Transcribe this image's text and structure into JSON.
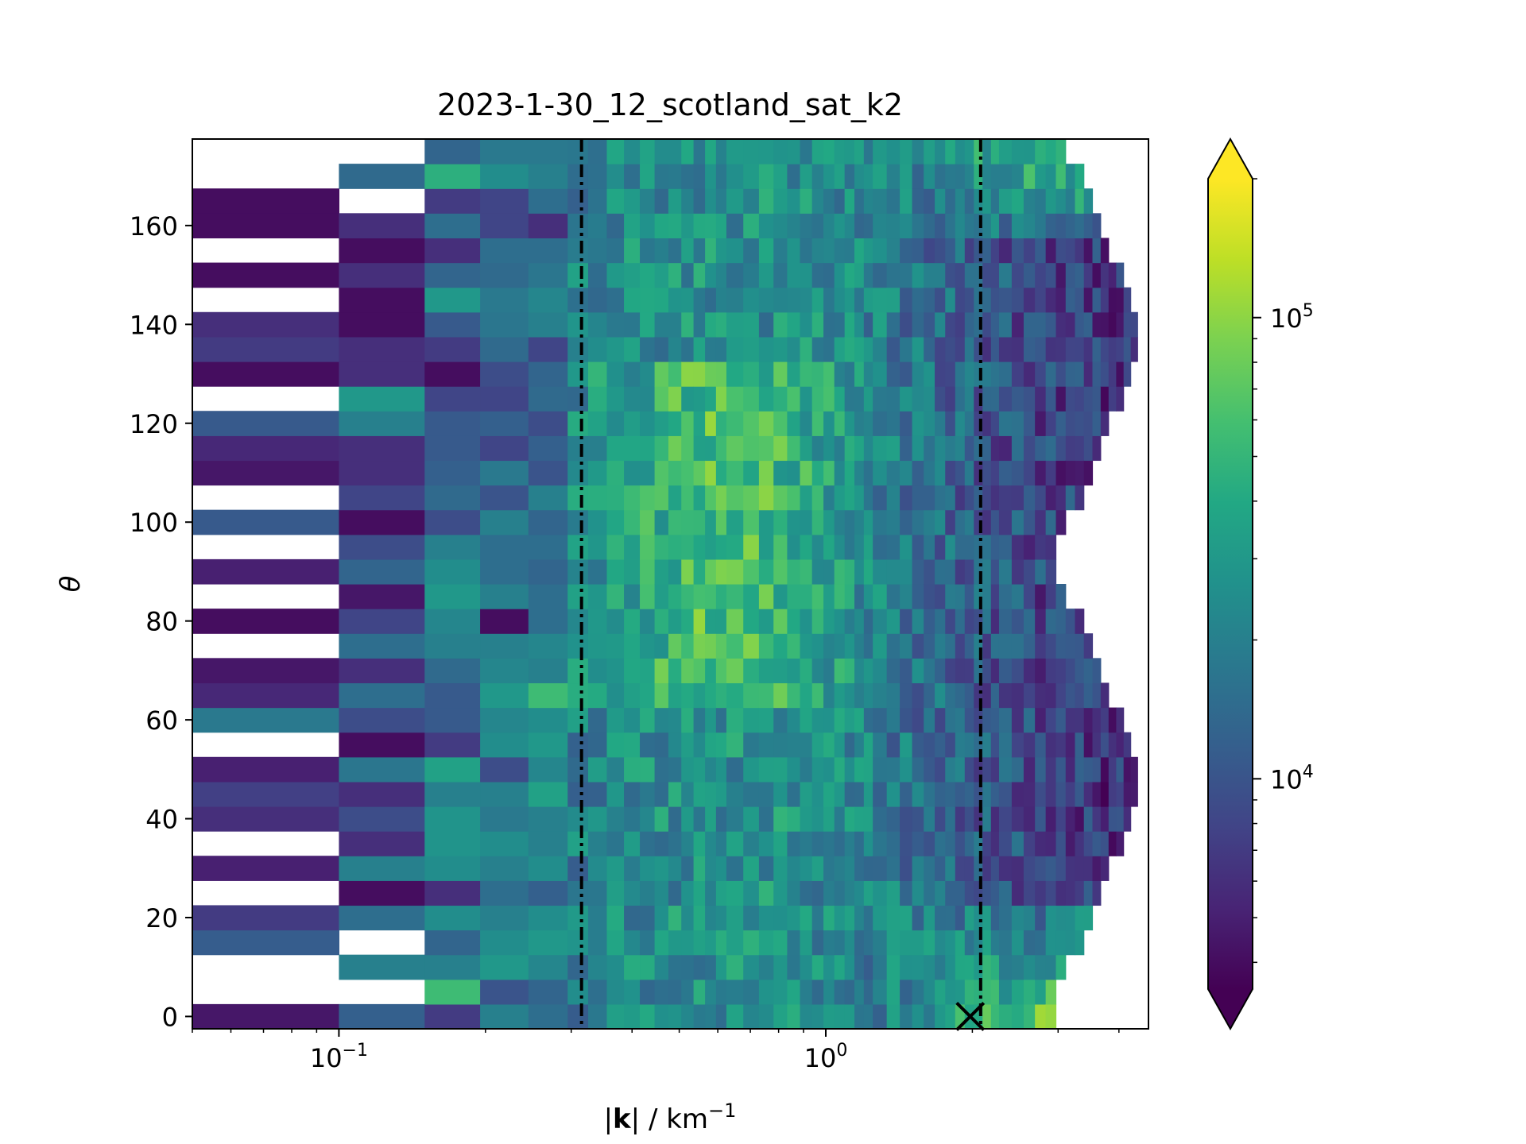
{
  "chart_data": {
    "type": "heatmap",
    "title": "2023-1-30_12_scotland_sat_k2",
    "xlabel_bold": "k",
    "xlabel_unit": " / km",
    "xlabel_exp": "−1",
    "ylabel": "θ",
    "xscale": "log",
    "xlim": [
      0.05,
      4.6
    ],
    "ylim": [
      -2.5,
      177.5
    ],
    "x_ticks": [
      {
        "value": 0.1,
        "base": "10",
        "exp": "−1"
      },
      {
        "value": 1,
        "base": "10",
        "exp": "0"
      }
    ],
    "y_ticks": [
      0,
      20,
      40,
      60,
      80,
      100,
      120,
      140,
      160
    ],
    "colorbar": {
      "scale": "log",
      "range": [
        3500,
        200000
      ],
      "extend": "both",
      "colormap": "viridis",
      "ticks": [
        {
          "value": 10000,
          "base": "10",
          "exp": "4"
        },
        {
          "value": 100000,
          "base": "10",
          "exp": "5"
        }
      ]
    },
    "theta_bin_width": 5,
    "theta_bins": [
      0,
      5,
      10,
      15,
      20,
      25,
      30,
      35,
      40,
      45,
      50,
      55,
      60,
      65,
      70,
      75,
      80,
      85,
      90,
      95,
      100,
      105,
      110,
      115,
      120,
      125,
      130,
      135,
      140,
      145,
      150,
      155,
      160,
      165,
      170,
      175
    ],
    "lowk_columns": [
      {
        "k_start": 0.05,
        "k_end": 0.1,
        "values": [
          4500,
          null,
          null,
          11500,
          7000,
          null,
          5000,
          null,
          6000,
          7500,
          5000,
          null,
          18000,
          5500,
          4500,
          null,
          4000,
          null,
          5000,
          null,
          11000,
          null,
          4500,
          5500,
          11000,
          null,
          4000,
          7000,
          6000,
          null,
          4000,
          null,
          4000,
          4000,
          null,
          null
        ]
      },
      {
        "k_start": 0.1,
        "k_end": 0.15,
        "values": [
          12000,
          null,
          20000,
          null,
          15000,
          4000,
          20000,
          6000,
          9000,
          6000,
          17000,
          4000,
          9000,
          15000,
          6000,
          15000,
          8000,
          4500,
          13000,
          9000,
          4000,
          8000,
          6000,
          6000,
          20000,
          30000,
          6000,
          6000,
          4000,
          4000,
          6000,
          4000,
          6000,
          null,
          14000,
          null
        ]
      },
      {
        "k_start": 0.15,
        "k_end": 0.195,
        "values": [
          7000,
          55000,
          20000,
          13000,
          25000,
          6000,
          25000,
          28000,
          28000,
          20000,
          35000,
          7000,
          11000,
          11000,
          14000,
          20000,
          22000,
          30000,
          25000,
          20000,
          9000,
          14000,
          12000,
          11000,
          11000,
          8000,
          4000,
          7000,
          11000,
          30000,
          13000,
          6000,
          15000,
          7000,
          45000,
          13000
        ]
      },
      {
        "k_start": 0.195,
        "k_end": 0.245,
        "values": [
          20000,
          10000,
          30000,
          25000,
          20000,
          15000,
          20000,
          25000,
          18000,
          20000,
          9000,
          25000,
          22000,
          30000,
          22000,
          20000,
          4000,
          20000,
          15000,
          15000,
          20000,
          10000,
          18000,
          8000,
          12000,
          8000,
          9000,
          14000,
          17000,
          18000,
          14000,
          15000,
          8000,
          8000,
          25000,
          18000
        ]
      },
      {
        "k_start": 0.245,
        "k_end": 0.295,
        "values": [
          15000,
          13000,
          22000,
          30000,
          25000,
          12000,
          25000,
          20000,
          20000,
          35000,
          22000,
          30000,
          25000,
          55000,
          20000,
          22000,
          15000,
          15000,
          13000,
          15000,
          13000,
          20000,
          10000,
          12000,
          9000,
          14000,
          13000,
          8000,
          20000,
          22000,
          17000,
          15000,
          6000,
          15000,
          20000,
          18000
        ]
      }
    ],
    "dashed_lines_k": [
      0.315,
      2.08
    ],
    "peak_marker": {
      "k": 1.98,
      "theta": 0
    }
  }
}
